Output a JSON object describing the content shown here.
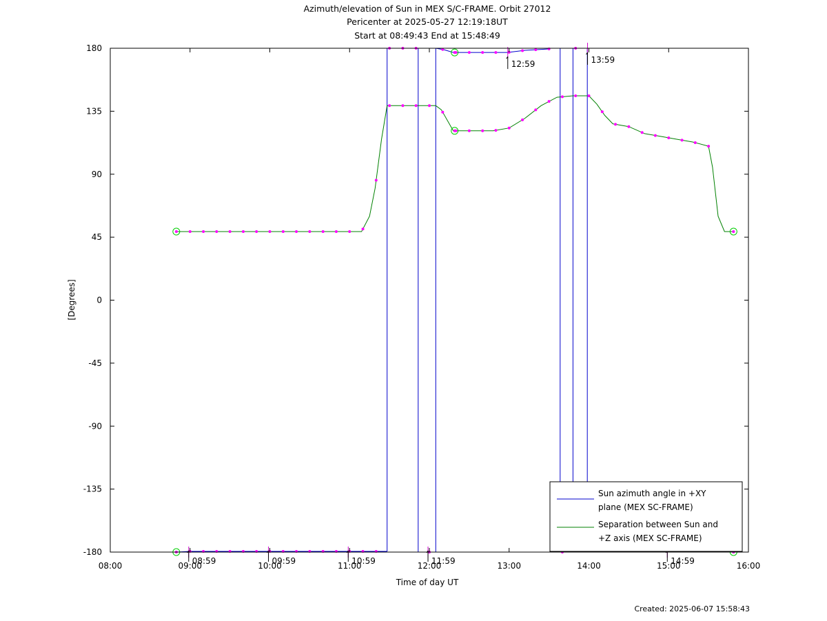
{
  "chart_data": {
    "type": "line",
    "title_lines": [
      "Azimuth/elevation of Sun in MEX S/C-FRAME.  Orbit 27012",
      "Pericenter at 2025-05-27 12:19:18UT",
      "Start at 08:49:43 End at 15:48:49"
    ],
    "xlabel": "Time of day UT",
    "ylabel": "[Degrees]",
    "xlim": [
      8.0,
      16.0
    ],
    "ylim": [
      -180,
      180
    ],
    "x_ticks": [
      {
        "v": 8,
        "label": "08:00"
      },
      {
        "v": 9,
        "label": "09:00"
      },
      {
        "v": 10,
        "label": "10:00"
      },
      {
        "v": 11,
        "label": "11:00"
      },
      {
        "v": 12,
        "label": "12:00"
      },
      {
        "v": 13,
        "label": "13:00"
      },
      {
        "v": 14,
        "label": "14:00"
      },
      {
        "v": 15,
        "label": "15:00"
      },
      {
        "v": 16,
        "label": "16:00"
      }
    ],
    "y_ticks": [
      {
        "v": 180,
        "label": "180"
      },
      {
        "v": 135,
        "label": "135"
      },
      {
        "v": 90,
        "label": "90"
      },
      {
        "v": 45,
        "label": "45"
      },
      {
        "v": 0,
        "label": "0"
      },
      {
        "v": -45,
        "label": "-45"
      },
      {
        "v": -90,
        "label": "-90"
      },
      {
        "v": -135,
        "label": "-135"
      },
      {
        "v": -180,
        "label": "-180"
      }
    ],
    "grid": false,
    "legend_position": "bottom-right",
    "series": [
      {
        "name_lines": [
          "Sun azimuth angle in +XY",
          "plane (MEX SC-FRAME)"
        ],
        "color": "#0000cc",
        "segments": [
          {
            "x": [
              8.828,
              9.0,
              9.5,
              10.0,
              10.5,
              11.0,
              11.3,
              11.47
            ],
            "y": [
              -180,
              -179.5,
              -179.5,
              -179.5,
              -179.5,
              -179.5,
              -179.5,
              -179.5
            ]
          },
          {
            "x": [
              11.47,
              11.47
            ],
            "y": [
              -179.5,
              180
            ]
          },
          {
            "x": [
              11.47,
              11.6,
              11.75,
              11.86
            ],
            "y": [
              180,
              180,
              180,
              180
            ]
          },
          {
            "x": [
              11.86,
              11.86
            ],
            "y": [
              180,
              -180
            ]
          },
          {
            "x": [
              11.86,
              11.95,
              12.08
            ],
            "y": [
              -180,
              -180,
              -180
            ]
          },
          {
            "x": [
              12.08,
              12.08
            ],
            "y": [
              -180,
              180
            ]
          },
          {
            "x": [
              12.08,
              12.18,
              12.3,
              12.45,
              12.6,
              12.8,
              12.98,
              13.2,
              13.5
            ],
            "y": [
              180,
              179,
              177,
              177,
              177,
              177,
              177,
              178.5,
              179.5
            ]
          },
          {
            "x": [
              13.64,
              13.64
            ],
            "y": [
              180,
              -180
            ]
          },
          {
            "x": [
              13.64,
              13.8
            ],
            "y": [
              -180,
              -180
            ]
          },
          {
            "x": [
              13.8,
              13.8
            ],
            "y": [
              -180,
              180
            ]
          },
          {
            "x": [
              13.8,
              13.98
            ],
            "y": [
              180,
              180
            ]
          },
          {
            "x": [
              13.98,
              13.98
            ],
            "y": [
              180,
              -180
            ]
          },
          {
            "x": [
              15.62,
              15.7,
              15.8
            ],
            "y": [
              -174,
              -179,
              -180
            ]
          }
        ]
      },
      {
        "name_lines": [
          "Separation between Sun and",
          "+Z axis (MEX SC-FRAME)"
        ],
        "color": "#008000",
        "x": [
          8.828,
          9.0,
          9.5,
          10.0,
          10.5,
          11.0,
          11.15,
          11.25,
          11.32,
          11.4,
          11.47,
          11.6,
          11.8,
          12.0,
          12.08,
          12.15,
          12.3,
          12.5,
          12.8,
          13.0,
          13.2,
          13.4,
          13.6,
          13.8,
          14.0,
          14.1,
          14.2,
          14.3,
          14.5,
          14.7,
          14.9,
          15.1,
          15.3,
          15.5,
          15.55,
          15.62,
          15.7,
          15.8
        ],
        "y": [
          49,
          49,
          49,
          49,
          49,
          49,
          49,
          60,
          80,
          115,
          139,
          139,
          139,
          139,
          139,
          136,
          121,
          121,
          121,
          123,
          130,
          139,
          145,
          146,
          146,
          140,
          132,
          126,
          124,
          119,
          117,
          115,
          113,
          110,
          95,
          60,
          49,
          49
        ]
      }
    ],
    "markers": {
      "start_end_circles": [
        {
          "x": 8.828,
          "y": -180
        },
        {
          "x": 8.828,
          "y": 49
        },
        {
          "x": 12.317,
          "y": 177
        },
        {
          "x": 12.317,
          "y": 121
        },
        {
          "x": 15.813,
          "y": -180
        },
        {
          "x": 15.813,
          "y": 49
        }
      ],
      "magenta_dot_times": [
        9.0,
        9.167,
        9.333,
        9.5,
        9.667,
        9.833,
        10.0,
        10.167,
        10.333,
        10.5,
        10.667,
        10.833,
        11.0,
        11.167,
        11.333,
        11.5,
        11.667,
        11.833,
        12.0,
        12.167,
        12.333,
        12.5,
        12.667,
        12.833,
        13.0,
        13.167,
        13.333,
        13.5,
        13.667,
        13.833,
        14.0,
        14.167,
        14.333,
        14.5,
        14.667,
        14.833,
        15.0,
        15.167,
        15.333,
        15.5
      ]
    },
    "annotations": [
      {
        "x": 8.983,
        "y": -180,
        "label": "08:59"
      },
      {
        "x": 9.983,
        "y": -180,
        "label": "09:59"
      },
      {
        "x": 10.983,
        "y": -180,
        "label": "10:59"
      },
      {
        "x": 11.983,
        "y": -180,
        "label": "11:59"
      },
      {
        "x": 12.983,
        "y": 177,
        "label": "12:59"
      },
      {
        "x": 13.983,
        "y": 180,
        "label": "13:59"
      },
      {
        "x": 14.983,
        "y": -180,
        "label": "14:59"
      }
    ]
  },
  "footer": "Created: 2025-06-07 15:58:43"
}
